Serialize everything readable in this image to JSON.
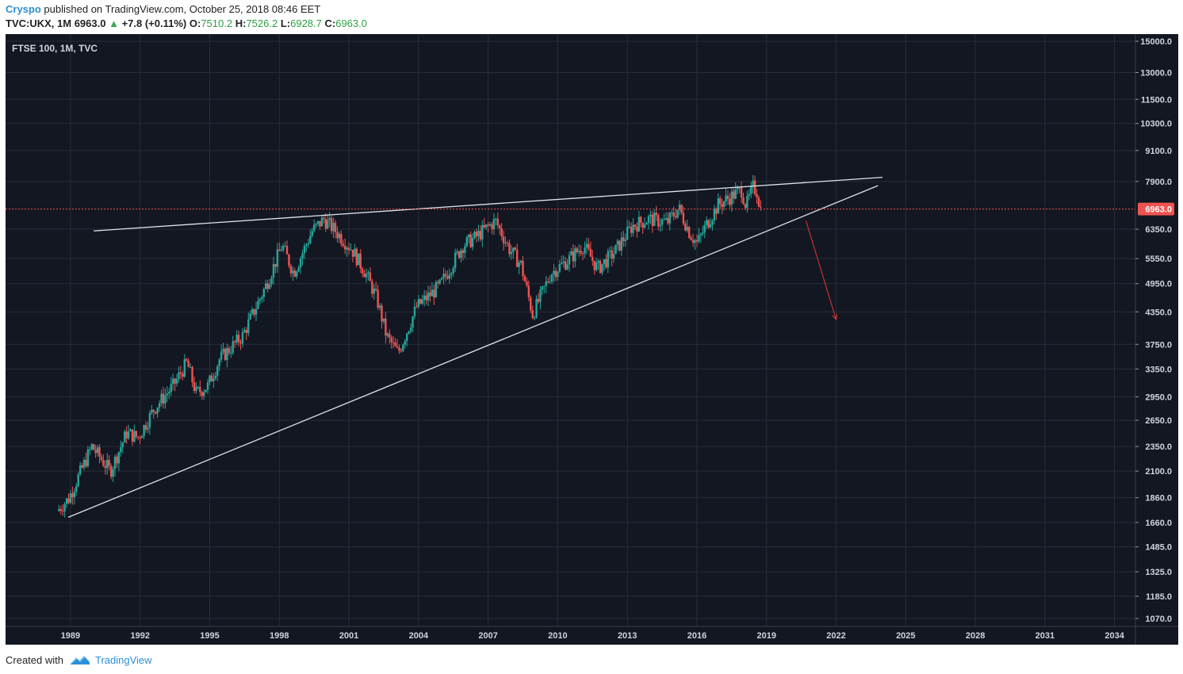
{
  "header": {
    "author": "Cryspo",
    "published_text": "published on TradingView.com, October 25, 2018 08:46 EET"
  },
  "quote": {
    "symbol": "TVC:UKX, 1M",
    "last": "6963.0",
    "change": "+7.8 (+0.11%)",
    "o_label": "O:",
    "o": "7510.2",
    "h_label": "H:",
    "h": "7526.2",
    "l_label": "L:",
    "l": "6928.7",
    "c_label": "C:",
    "c": "6963.0"
  },
  "footer": {
    "created_with": "Created with",
    "brand": "TradingView"
  },
  "colors": {
    "background": "#131722",
    "grid": "#2a2e39",
    "up": "#26a69a",
    "down": "#ef5350",
    "text": "#d1d4dc",
    "trendline": "#e0e3eb",
    "price_line": "#ef5350",
    "arrow": "#e53935"
  },
  "chart_data": {
    "type": "candlestick",
    "title": "FTSE 100, 1M, TVC",
    "x_range": [
      1986.2,
      2034.9
    ],
    "y_range": [
      1032,
      15500
    ],
    "y_scale": "log",
    "x_tick_labels": [
      "1989",
      "1992",
      "1995",
      "1998",
      "2001",
      "2004",
      "2007",
      "2010",
      "2013",
      "2016",
      "2019",
      "2022",
      "2025",
      "2028",
      "2031",
      "2034"
    ],
    "y_tick_labels": [
      "15000.0",
      "13000.0",
      "11500.0",
      "10300.0",
      "9100.0",
      "7900.0",
      "6963.0",
      "6350.0",
      "5550.0",
      "4950.0",
      "4350.0",
      "3750.0",
      "3350.0",
      "2950.0",
      "2650.0",
      "2350.0",
      "2100.0",
      "1860.0",
      "1660.0",
      "1485.0",
      "1325.0",
      "1185.0",
      "1070.0"
    ],
    "last_price": 6963.0,
    "series": [
      {
        "x": [
          1988.5,
          1989.0,
          1990.0,
          1990.8,
          1991.5,
          1992.0,
          1992.7,
          1993.5,
          1994.1,
          1994.5,
          1995.0,
          1995.5,
          1996.5,
          1997.5,
          1998.2,
          1998.7,
          1999.5,
          2000.0,
          2000.5,
          2001.2,
          2001.8,
          2002.3,
          2002.7,
          2003.2,
          2004.0,
          2005.0,
          2006.0,
          2006.5,
          2007.4,
          2008.0,
          2008.5,
          2009.0,
          2009.8,
          2010.5,
          2011.2,
          2011.8,
          2012.5,
          2013.3,
          2014.0,
          2014.8,
          2015.3,
          2015.8,
          2016.1,
          2016.5,
          2017.0,
          2017.6,
          2018.0,
          2018.2,
          2018.5,
          2018.7,
          2018.8
        ],
        "y": [
          1750,
          1850,
          2350,
          2100,
          2500,
          2450,
          2800,
          3100,
          3450,
          3000,
          3100,
          3500,
          3900,
          4900,
          5900,
          5200,
          6300,
          6650,
          6300,
          5800,
          5200,
          4600,
          3900,
          3600,
          4450,
          4900,
          5900,
          6100,
          6600,
          5800,
          5400,
          4300,
          5200,
          5500,
          5900,
          5300,
          5700,
          6450,
          6650,
          6550,
          7000,
          6200,
          5950,
          6500,
          7100,
          7400,
          7600,
          7050,
          7700,
          7510,
          6963
        ]
      }
    ],
    "lines": [
      {
        "name": "upper-trendline",
        "from": [
          1990.0,
          6300
        ],
        "to": [
          2024.0,
          8050
        ]
      },
      {
        "name": "lower-trendline",
        "from": [
          1988.9,
          1700
        ],
        "to": [
          2023.8,
          7750
        ]
      },
      {
        "name": "projection-arrow",
        "from": [
          2020.7,
          6600
        ],
        "to": [
          2022.0,
          4200
        ]
      }
    ]
  }
}
